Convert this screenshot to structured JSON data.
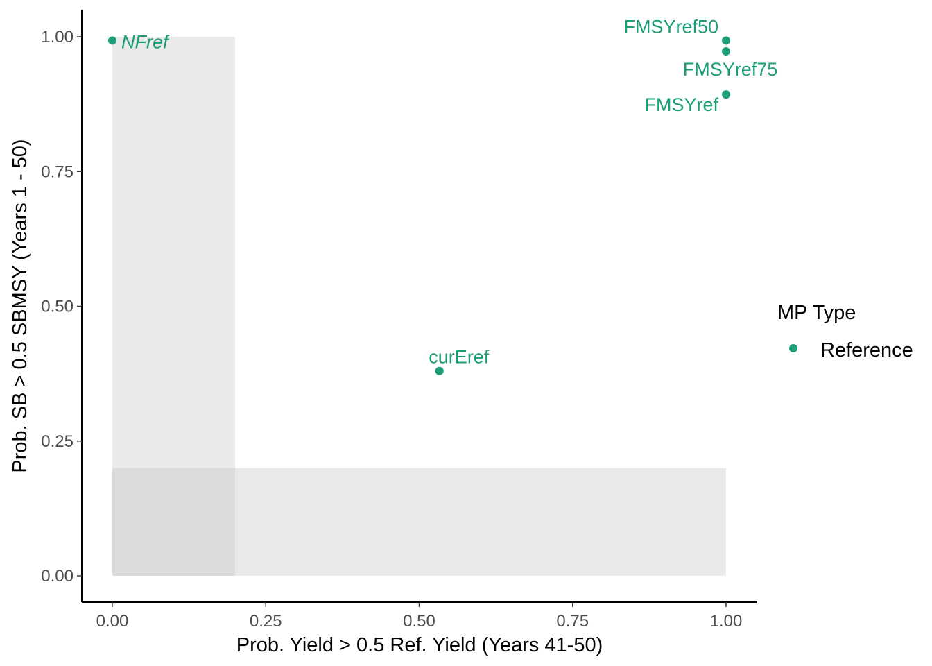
{
  "chart_data": {
    "type": "scatter",
    "xlabel": "Prob. Yield > 0.5 Ref. Yield (Years 41-50)",
    "ylabel": "Prob. SB > 0.5 SBMSY (Years 1 - 50)",
    "xlim": [
      -0.1,
      1.1
    ],
    "ylim": [
      -0.1,
      1.05
    ],
    "x_ticks": [
      {
        "value": 0,
        "label": "0.00"
      },
      {
        "value": 0.25,
        "label": "0.25"
      },
      {
        "value": 0.5,
        "label": "0.50"
      },
      {
        "value": 0.75,
        "label": "0.75"
      },
      {
        "value": 1,
        "label": "1.00"
      }
    ],
    "y_ticks": [
      {
        "value": 0,
        "label": "0.00"
      },
      {
        "value": 0.25,
        "label": "0.25"
      },
      {
        "value": 0.5,
        "label": "0.50"
      },
      {
        "value": 0.75,
        "label": "0.75"
      },
      {
        "value": 1,
        "label": "1.00"
      }
    ],
    "shaded_regions": [
      {
        "x": [
          0,
          0.2
        ],
        "y": [
          0,
          1
        ]
      },
      {
        "x": [
          0,
          1
        ],
        "y": [
          0,
          0.2
        ]
      }
    ],
    "grid": false,
    "legend": {
      "title": "MP Type",
      "position": "right",
      "entries": [
        {
          "label": "Reference",
          "color": "#1b9e77"
        }
      ]
    },
    "series": [
      {
        "name": "Reference",
        "color": "#1b9e77",
        "points": [
          {
            "label": "NFref",
            "x": 0.0,
            "y": 0.993,
            "italic": true,
            "anchor": "right-of"
          },
          {
            "label": "FMSYref50",
            "x": 1.0,
            "y": 0.993,
            "italic": false,
            "anchor": "above-left"
          },
          {
            "label": "FMSYref75",
            "x": 1.0,
            "y": 0.973,
            "italic": false,
            "anchor": "below"
          },
          {
            "label": "FMSYref",
            "x": 1.0,
            "y": 0.893,
            "italic": false,
            "anchor": "below-left"
          },
          {
            "label": "curEref",
            "x": 0.533,
            "y": 0.38,
            "italic": false,
            "anchor": "above"
          }
        ]
      }
    ]
  }
}
